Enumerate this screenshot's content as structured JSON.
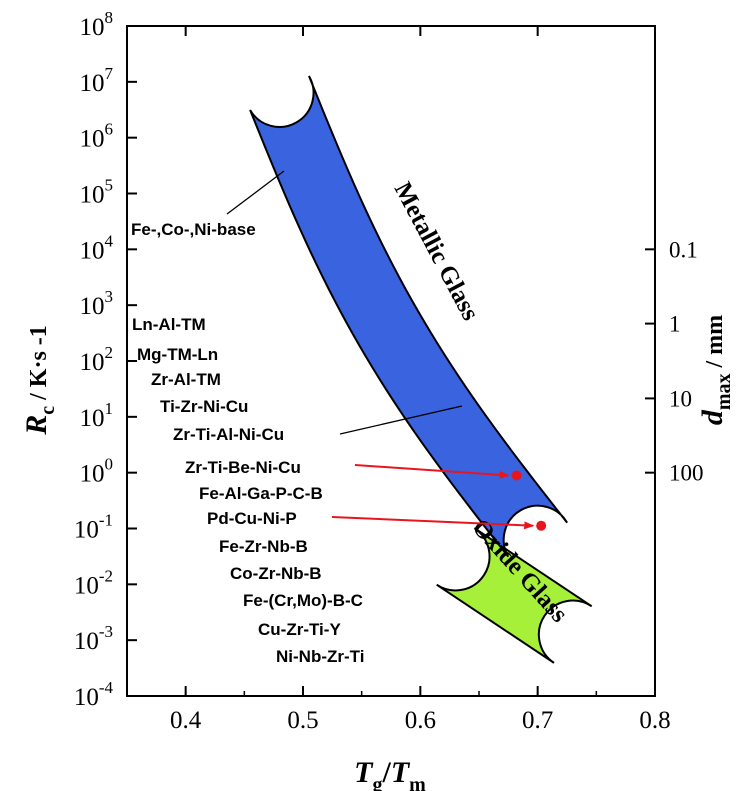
{
  "chart_data": {
    "type": "region",
    "x_axis": {
      "label_main": "T",
      "label_sub": "g",
      "label_sep": "/",
      "label_main2": "T",
      "label_sub2": "m",
      "range": [
        0.35,
        0.8
      ],
      "ticks": [
        "0.4",
        "0.5",
        "0.6",
        "0.7",
        "0.8"
      ]
    },
    "y_axis": {
      "label_main": "R",
      "label_sub": "c",
      "label_unit": "/ K·s -1",
      "scale": "log",
      "range": [
        -4,
        8
      ],
      "tick_base": "10",
      "tick_exponents": [
        "-4",
        "-3",
        "-2",
        "-1",
        "0",
        "1",
        "2",
        "3",
        "4",
        "5",
        "6",
        "7",
        "8"
      ]
    },
    "y2_axis": {
      "label_main": "d",
      "label_sub": "max",
      "label_unit": "/ mm",
      "ticks": [
        "0.1",
        "1",
        "10",
        "100"
      ]
    },
    "regions": [
      {
        "name": "Metallic Glass",
        "color": "#3a63e0",
        "from": [
          0.48,
          6.8
        ],
        "to": [
          0.7,
          -1.2
        ]
      },
      {
        "name": "Oxide Glass",
        "color": "#a6f03a",
        "from": [
          0.63,
          -1.5
        ],
        "to": [
          0.73,
          -2.9
        ]
      }
    ],
    "alloys": [
      "Fe-,Co-,Ni-base",
      "Ln-Al-TM",
      "Mg-TM-Ln",
      "Zr-Al-TM",
      "Ti-Zr-Ni-Cu",
      "Zr-Ti-Al-Ni-Cu",
      "Zr-Ti-Be-Ni-Cu",
      "Fe-Al-Ga-P-C-B",
      "Pd-Cu-Ni-P",
      "Fe-Zr-Nb-B",
      "Co-Zr-Nb-B",
      "Fe-(Cr,Mo)-B-C",
      "Cu-Zr-Ti-Y",
      "Ni-Nb-Zr-Ti"
    ],
    "highlighted_points": [
      {
        "alloy": "Zr-Ti-Be-Ni-Cu",
        "x": 0.682,
        "y": -0.05
      },
      {
        "alloy": "Pd-Cu-Ni-P",
        "x": 0.703,
        "y": -0.95
      }
    ],
    "colors": {
      "highlight": "#e8161c"
    }
  }
}
